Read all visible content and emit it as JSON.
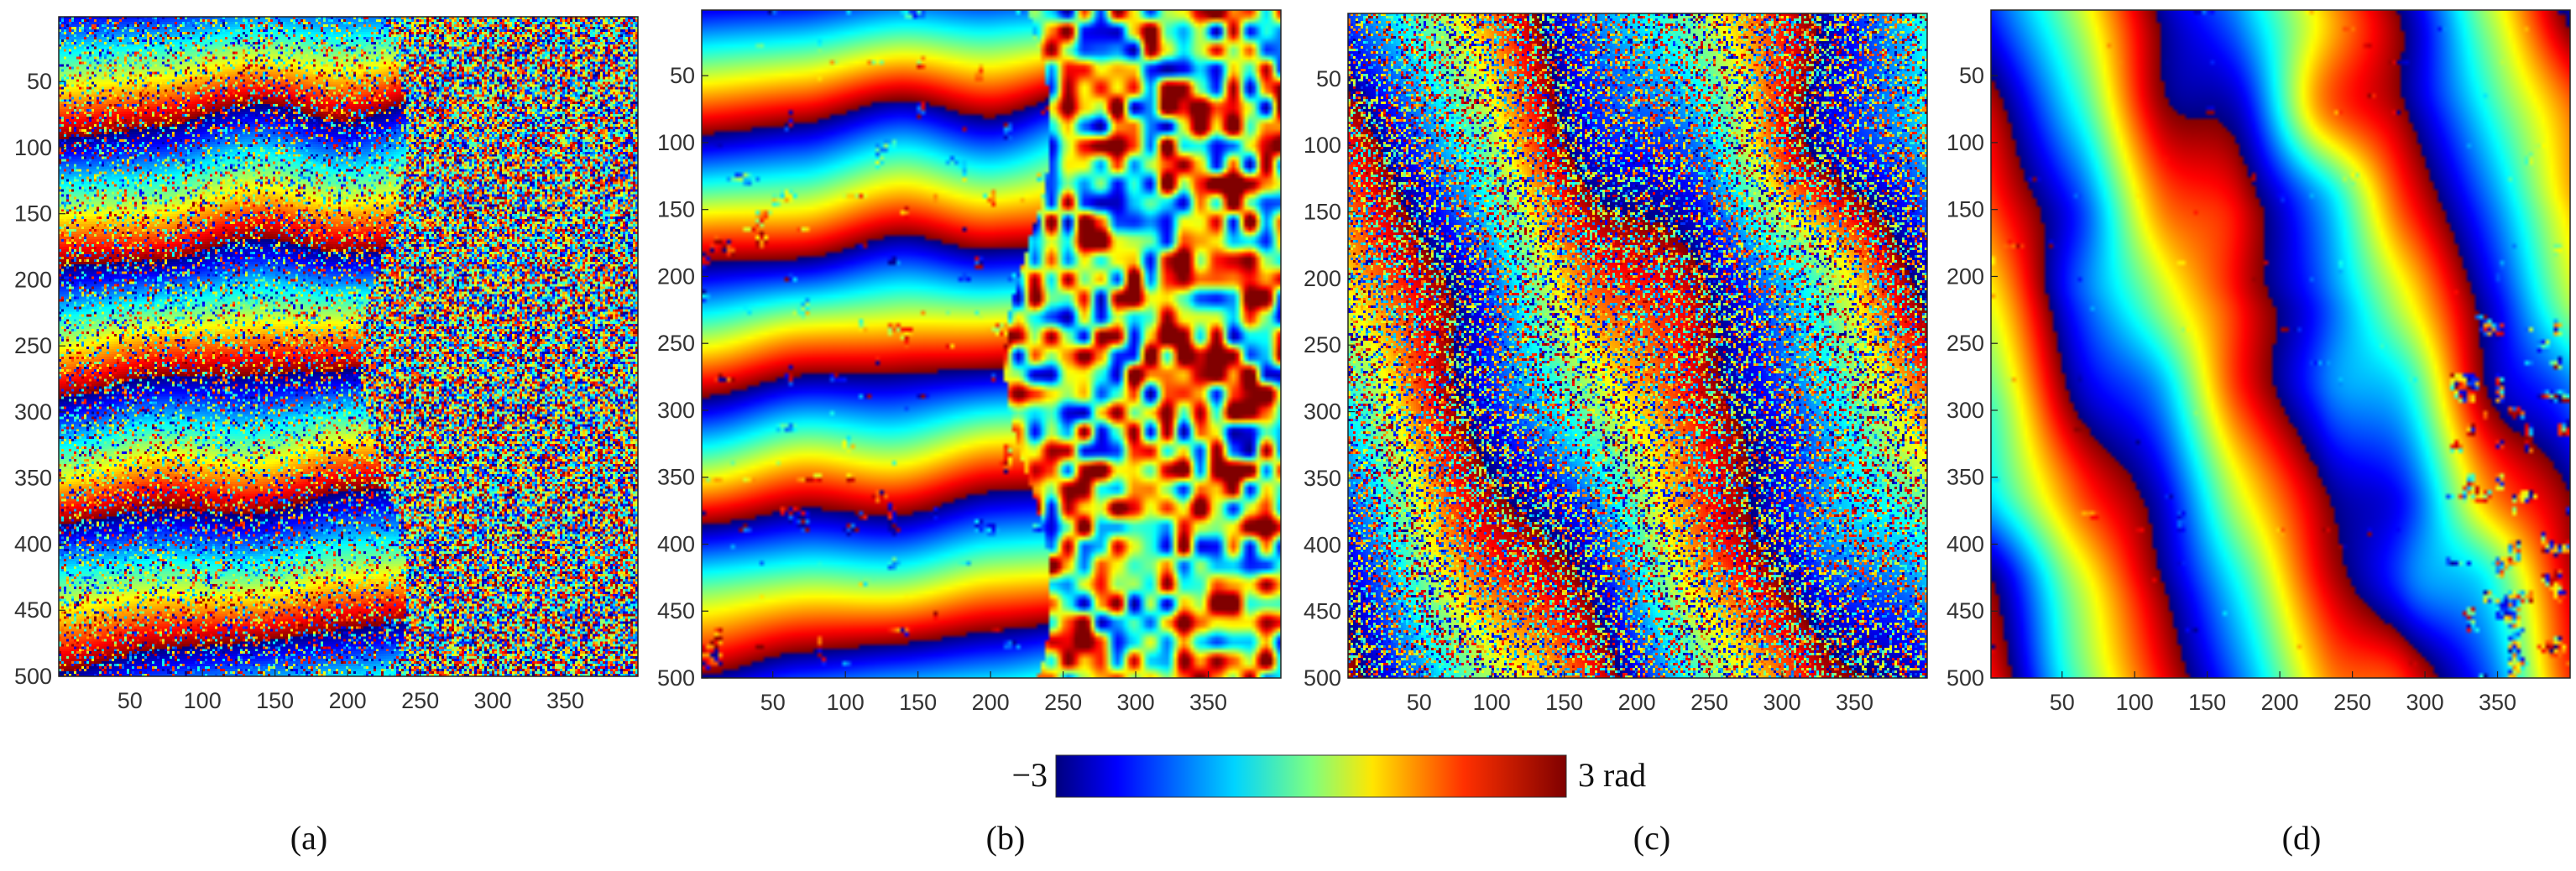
{
  "chart_data": [
    {
      "type": "heatmap",
      "panel": "(a)",
      "texture": "noisy-fringes",
      "fringe_count": 5,
      "noise_level": 0.55,
      "xlim": [
        1,
        400
      ],
      "ylim": [
        500,
        1
      ],
      "x_ticks": [
        50,
        100,
        150,
        200,
        250,
        300,
        350
      ],
      "y_ticks": [
        50,
        100,
        150,
        200,
        250,
        300,
        350,
        400,
        450,
        500
      ],
      "colormap": "jet",
      "value_range": [
        -3,
        3
      ]
    },
    {
      "type": "heatmap",
      "panel": "(b)",
      "texture": "filtered-fringes",
      "fringe_count": 5,
      "noise_level": 0.25,
      "xlim": [
        1,
        400
      ],
      "ylim": [
        500,
        1
      ],
      "x_ticks": [
        50,
        100,
        150,
        200,
        250,
        300,
        350
      ],
      "y_ticks": [
        50,
        100,
        150,
        200,
        250,
        300,
        350,
        400,
        450,
        500
      ],
      "colormap": "jet",
      "value_range": [
        -3,
        3
      ]
    },
    {
      "type": "heatmap",
      "panel": "(c)",
      "texture": "noisy-diagonal-fringes",
      "fringe_count": 3,
      "noise_level": 0.75,
      "xlim": [
        1,
        400
      ],
      "ylim": [
        500,
        1
      ],
      "x_ticks": [
        50,
        100,
        150,
        200,
        250,
        300,
        350
      ],
      "y_ticks": [
        50,
        100,
        150,
        200,
        250,
        300,
        350,
        400,
        450,
        500
      ],
      "colormap": "jet",
      "value_range": [
        -3,
        3
      ]
    },
    {
      "type": "heatmap",
      "panel": "(d)",
      "texture": "smooth-diagonal-fringes",
      "fringe_count": 3,
      "noise_level": 0.12,
      "xlim": [
        1,
        400
      ],
      "ylim": [
        500,
        1
      ],
      "x_ticks": [
        50,
        100,
        150,
        200,
        250,
        300,
        350
      ],
      "y_ticks": [
        50,
        100,
        150,
        200,
        250,
        300,
        350,
        400,
        450,
        500
      ],
      "colormap": "jet",
      "value_range": [
        -3,
        3
      ]
    }
  ],
  "colorbar": {
    "min_label": "−3",
    "max_label": "3 rad",
    "range": [
      -3,
      3
    ],
    "colormap": "jet"
  },
  "captions": [
    "(a)",
    "(b)",
    "(c)",
    "(d)"
  ]
}
